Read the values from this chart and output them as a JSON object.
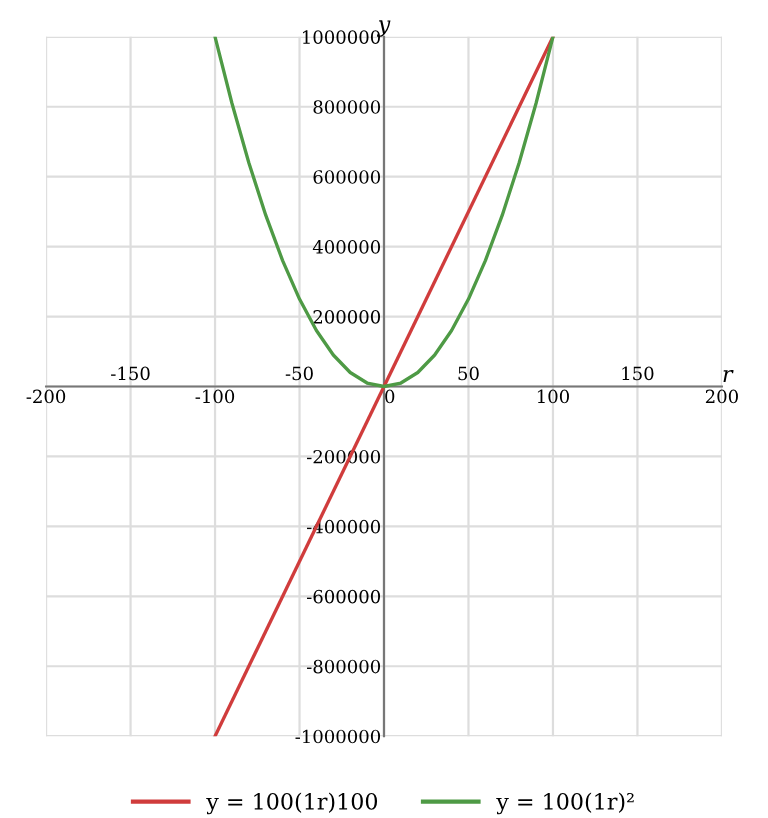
{
  "chart_data": {
    "type": "line",
    "xlabel": "r",
    "ylabel": "y",
    "xlim": [
      -200,
      200
    ],
    "ylim": [
      -1000000,
      1000000
    ],
    "xticks": [
      -200,
      {
        "value": -150,
        "label": null
      },
      -100,
      {
        "value": -50,
        "label": null
      },
      0,
      {
        "value": 50,
        "label": null
      },
      100,
      {
        "value": 150,
        "label": null
      },
      200
    ],
    "x2lim": [
      -200,
      200
    ],
    "x2ticks": [
      -150,
      -50,
      50,
      150
    ],
    "yticks": [
      -1000000,
      -800000,
      -600000,
      -400000,
      -200000,
      {
        "value": 0,
        "label": null
      },
      200000,
      400000,
      600000,
      800000,
      1000000
    ],
    "grid": true,
    "legend": "bottom",
    "marker": "none",
    "line_style": "solid",
    "series": [
      {
        "name": "y = 100(1r)100",
        "color": "#d03c3c",
        "x": [
          -100,
          0,
          100
        ],
        "values": [
          -1000000,
          0,
          1000000
        ]
      },
      {
        "name": "y = 100(1r)²",
        "color": "#4e9a45",
        "x": [
          -100,
          -90,
          -80,
          -70,
          -60,
          -50,
          -40,
          -30,
          -20,
          -10,
          0,
          10,
          20,
          30,
          40,
          50,
          60,
          70,
          80,
          90,
          100
        ],
        "values": [
          1000000,
          810000,
          640000,
          490000,
          360000,
          250000,
          160000,
          90000,
          40000,
          10000,
          0,
          10000,
          40000,
          90000,
          160000,
          250000,
          360000,
          490000,
          640000,
          810000,
          1000000
        ]
      }
    ]
  }
}
